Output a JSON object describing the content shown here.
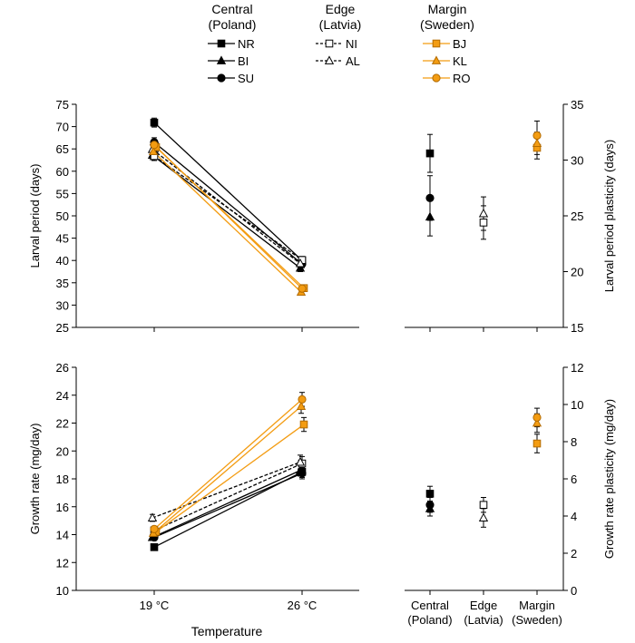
{
  "legend": {
    "groups": [
      {
        "title": [
          "Central",
          "(Poland)"
        ],
        "entries": [
          {
            "label": "NR",
            "marker": "square",
            "filled": true,
            "color": "#000000",
            "dashed": false
          },
          {
            "label": "BI",
            "marker": "triangle",
            "filled": true,
            "color": "#000000",
            "dashed": false
          },
          {
            "label": "SU",
            "marker": "circle",
            "filled": true,
            "color": "#000000",
            "dashed": false
          }
        ]
      },
      {
        "title": [
          "Edge",
          "(Latvia)"
        ],
        "entries": [
          {
            "label": "NI",
            "marker": "square",
            "filled": false,
            "color": "#000000",
            "dashed": true
          },
          {
            "label": "AL",
            "marker": "triangle",
            "filled": false,
            "color": "#000000",
            "dashed": true
          }
        ]
      },
      {
        "title": [
          "Margin",
          "(Sweden)"
        ],
        "entries": [
          {
            "label": "BJ",
            "marker": "square",
            "filled": true,
            "color": "#F39C12",
            "dashed": false
          },
          {
            "label": "KL",
            "marker": "triangle",
            "filled": true,
            "color": "#F39C12",
            "dashed": false
          },
          {
            "label": "RO",
            "marker": "circle",
            "filled": true,
            "color": "#F39C12",
            "dashed": false
          }
        ]
      }
    ]
  },
  "chart_data": [
    {
      "type": "line",
      "panel": "top-left",
      "xlabel": "",
      "ylabel": "Larval period (days)",
      "categories": [
        "19 °C",
        "26 °C"
      ],
      "show_tick_labels": false,
      "ylim": [
        25,
        75
      ],
      "yticks": [
        25,
        30,
        35,
        40,
        45,
        50,
        55,
        60,
        65,
        70,
        75
      ],
      "series": [
        {
          "name": "NR",
          "values": [
            70.9,
            40.0
          ],
          "err": [
            1.0,
            0.8
          ]
        },
        {
          "name": "BI",
          "values": [
            63.6,
            38.3
          ],
          "err": [
            1.0,
            0.8
          ]
        },
        {
          "name": "SU",
          "values": [
            66.5,
            39.2
          ],
          "err": [
            1.0,
            0.8
          ]
        },
        {
          "name": "NI",
          "values": [
            63.4,
            40.1
          ],
          "err": [
            1.0,
            0.8
          ]
        },
        {
          "name": "AL",
          "values": [
            64.9,
            39.3
          ],
          "err": [
            1.0,
            0.8
          ]
        },
        {
          "name": "BJ",
          "values": [
            65.4,
            33.8
          ],
          "err": [
            1.0,
            0.5
          ]
        },
        {
          "name": "KL",
          "values": [
            64.4,
            32.9
          ],
          "err": [
            1.0,
            0.5
          ]
        },
        {
          "name": "RO",
          "values": [
            65.9,
            33.7
          ],
          "err": [
            1.0,
            0.5
          ]
        }
      ]
    },
    {
      "type": "scatter",
      "panel": "top-right",
      "y2label": "Larval period plasticity (days)",
      "categories": [
        "Central (Poland)",
        "Edge (Latvia)",
        "Margin (Sweden)"
      ],
      "show_tick_labels": false,
      "ylim": [
        15,
        35
      ],
      "yticks": [
        15,
        20,
        25,
        30,
        35
      ],
      "series": [
        {
          "name": "NR",
          "category": "Central (Poland)",
          "value": 30.6,
          "err": 1.7
        },
        {
          "name": "BI",
          "category": "Central (Poland)",
          "value": 24.9,
          "err": 1.7
        },
        {
          "name": "SU",
          "category": "Central (Poland)",
          "value": 26.6,
          "err": 2.0
        },
        {
          "name": "NI",
          "category": "Edge (Latvia)",
          "value": 24.4,
          "err": 1.5
        },
        {
          "name": "AL",
          "category": "Edge (Latvia)",
          "value": 25.2,
          "err": 1.5
        },
        {
          "name": "BJ",
          "category": "Margin (Sweden)",
          "value": 31.1,
          "err": 1.0
        },
        {
          "name": "KL",
          "category": "Margin (Sweden)",
          "value": 31.5,
          "err": 1.0
        },
        {
          "name": "RO",
          "category": "Margin (Sweden)",
          "value": 32.2,
          "err": 1.3
        }
      ]
    },
    {
      "type": "line",
      "panel": "bottom-left",
      "xlabel": "Temperature",
      "ylabel": "Growth rate (mg/day)",
      "categories": [
        "19 °C",
        "26 °C"
      ],
      "show_tick_labels": true,
      "ylim": [
        10,
        26
      ],
      "yticks": [
        10,
        12,
        14,
        16,
        18,
        20,
        22,
        24,
        26
      ],
      "series": [
        {
          "name": "NR",
          "values": [
            13.1,
            18.5
          ],
          "err": [
            0.15,
            0.4
          ]
        },
        {
          "name": "BI",
          "values": [
            13.8,
            18.6
          ],
          "err": [
            0.2,
            0.4
          ]
        },
        {
          "name": "SU",
          "values": [
            13.8,
            18.4
          ],
          "err": [
            0.2,
            0.4
          ]
        },
        {
          "name": "NI",
          "values": [
            14.3,
            19.1
          ],
          "err": [
            0.2,
            0.5
          ]
        },
        {
          "name": "AL",
          "values": [
            15.2,
            19.2
          ],
          "err": [
            0.25,
            0.5
          ]
        },
        {
          "name": "BJ",
          "values": [
            14.2,
            21.9
          ],
          "err": [
            0.2,
            0.5
          ]
        },
        {
          "name": "KL",
          "values": [
            14.1,
            23.2
          ],
          "err": [
            0.2,
            0.5
          ]
        },
        {
          "name": "RO",
          "values": [
            14.4,
            23.7
          ],
          "err": [
            0.2,
            0.5
          ]
        }
      ]
    },
    {
      "type": "scatter",
      "panel": "bottom-right",
      "y2label": "Growth rate plasticity (mg/day)",
      "categories": [
        "Central (Poland)",
        "Edge (Latvia)",
        "Margin (Sweden)"
      ],
      "category_labels": [
        [
          "Central",
          "(Poland)"
        ],
        [
          "Edge",
          "(Latvia)"
        ],
        [
          "Margin",
          "(Sweden)"
        ]
      ],
      "show_tick_labels": true,
      "ylim": [
        0,
        12
      ],
      "yticks": [
        0,
        2,
        4,
        6,
        8,
        10,
        12
      ],
      "series": [
        {
          "name": "NR",
          "category": "Central (Poland)",
          "value": 5.2,
          "err": 0.4
        },
        {
          "name": "BI",
          "category": "Central (Poland)",
          "value": 4.4,
          "err": 0.4
        },
        {
          "name": "SU",
          "category": "Central (Poland)",
          "value": 4.6,
          "err": 0.4
        },
        {
          "name": "NI",
          "category": "Edge (Latvia)",
          "value": 4.6,
          "err": 0.4
        },
        {
          "name": "AL",
          "category": "Edge (Latvia)",
          "value": 3.9,
          "err": 0.5
        },
        {
          "name": "BJ",
          "category": "Margin (Sweden)",
          "value": 7.9,
          "err": 0.5
        },
        {
          "name": "KL",
          "category": "Margin (Sweden)",
          "value": 9.0,
          "err": 0.5
        },
        {
          "name": "RO",
          "category": "Margin (Sweden)",
          "value": 9.3,
          "err": 0.5
        }
      ]
    }
  ]
}
